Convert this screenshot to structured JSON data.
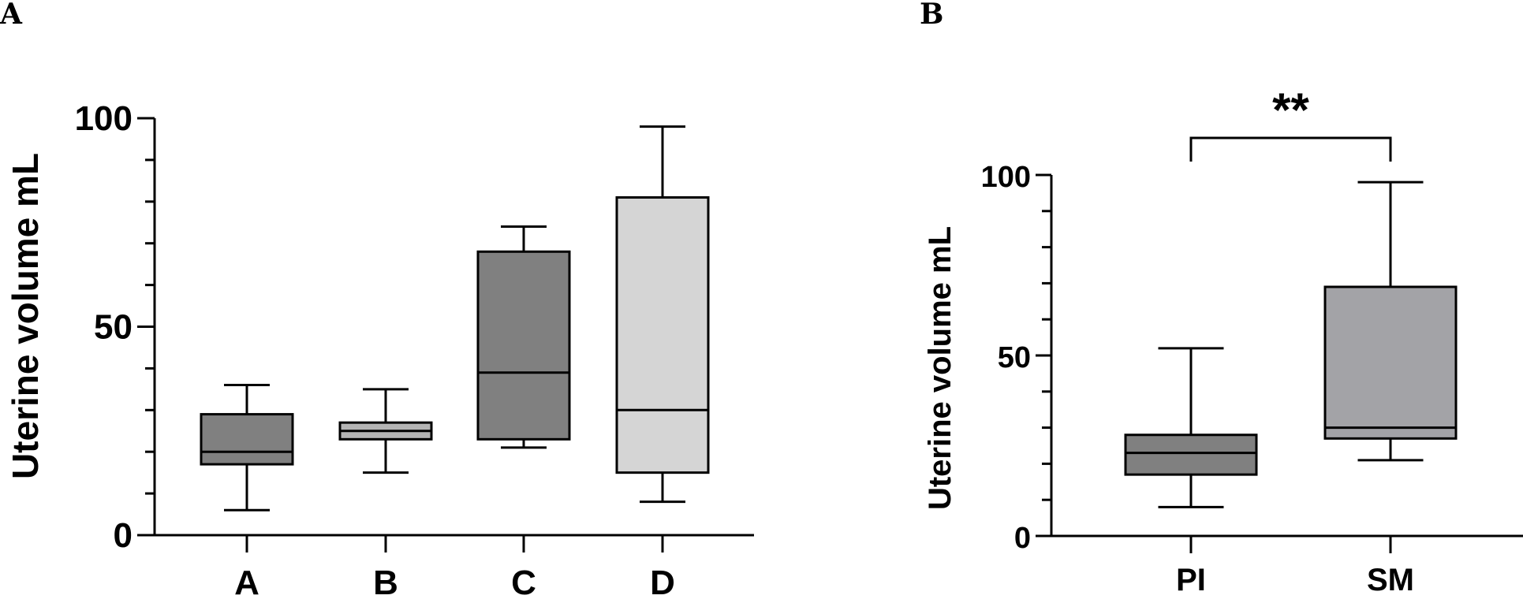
{
  "chart_data": [
    {
      "panel": "A",
      "type": "box",
      "ylabel": "Uterine volume mL",
      "ylim": [
        0,
        100
      ],
      "yticks_major": [
        0,
        50,
        100
      ],
      "yticks_minor": [
        10,
        20,
        30,
        40,
        60,
        70,
        80,
        90
      ],
      "categories": [
        "A",
        "B",
        "C",
        "D"
      ],
      "colors": [
        "#808080",
        "#b4b4b4",
        "#808080",
        "#d5d5d5"
      ],
      "boxes": [
        {
          "min": 6,
          "q1": 17,
          "median": 20,
          "q3": 29,
          "max": 36
        },
        {
          "min": 15,
          "q1": 23,
          "median": 25,
          "q3": 27,
          "max": 35
        },
        {
          "min": 21,
          "q1": 23,
          "median": 39,
          "q3": 68,
          "max": 74
        },
        {
          "min": 8,
          "q1": 15,
          "median": 30,
          "q3": 81,
          "max": 98
        }
      ]
    },
    {
      "panel": "B",
      "type": "box",
      "ylabel": "Uterine volume mL",
      "ylim": [
        0,
        100
      ],
      "yticks_major": [
        0,
        50,
        100
      ],
      "yticks_minor": [
        10,
        20,
        30,
        40,
        60,
        70,
        80,
        90
      ],
      "categories": [
        "PI",
        "SM"
      ],
      "colors": [
        "#808080",
        "#a3a3a7"
      ],
      "boxes": [
        {
          "min": 8,
          "q1": 17,
          "median": 23,
          "q3": 28,
          "max": 52
        },
        {
          "min": 21,
          "q1": 27,
          "median": 30,
          "q3": 69,
          "max": 98
        }
      ],
      "significance": {
        "from": "PI",
        "to": "SM",
        "label": "**"
      }
    }
  ]
}
